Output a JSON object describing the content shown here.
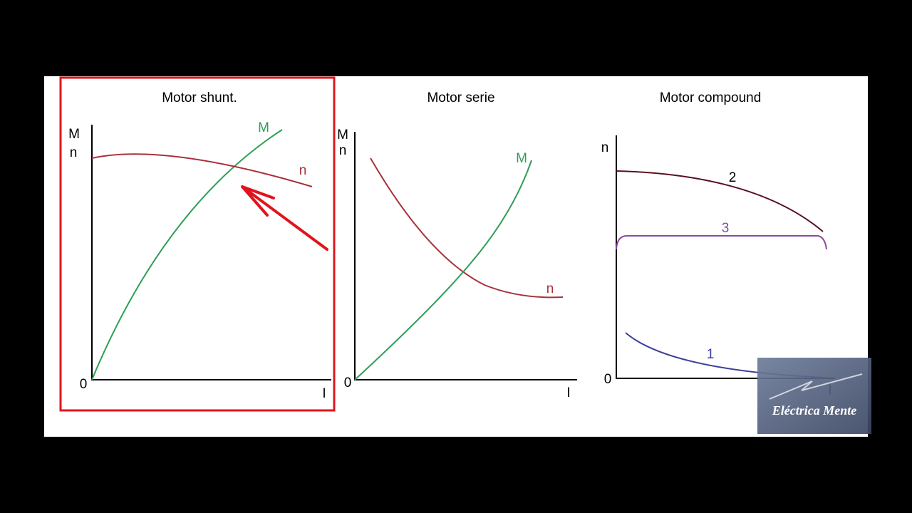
{
  "panels": [
    {
      "title": "Motor shunt.",
      "axis_top": "M",
      "axis_second": "n",
      "origin": "0",
      "x_axis": "I",
      "curve_labels": [
        "M",
        "n"
      ]
    },
    {
      "title": "Motor serie",
      "axis_top": "M",
      "axis_second": "n",
      "origin": "0",
      "x_axis": "I",
      "curve_labels": [
        "M",
        "n"
      ]
    },
    {
      "title": "Motor compound",
      "axis_top": "n",
      "origin": "0",
      "x_axis": "I",
      "curve_labels": [
        "2",
        "3",
        "1"
      ]
    }
  ],
  "watermark": "Eléctrica Mente"
}
